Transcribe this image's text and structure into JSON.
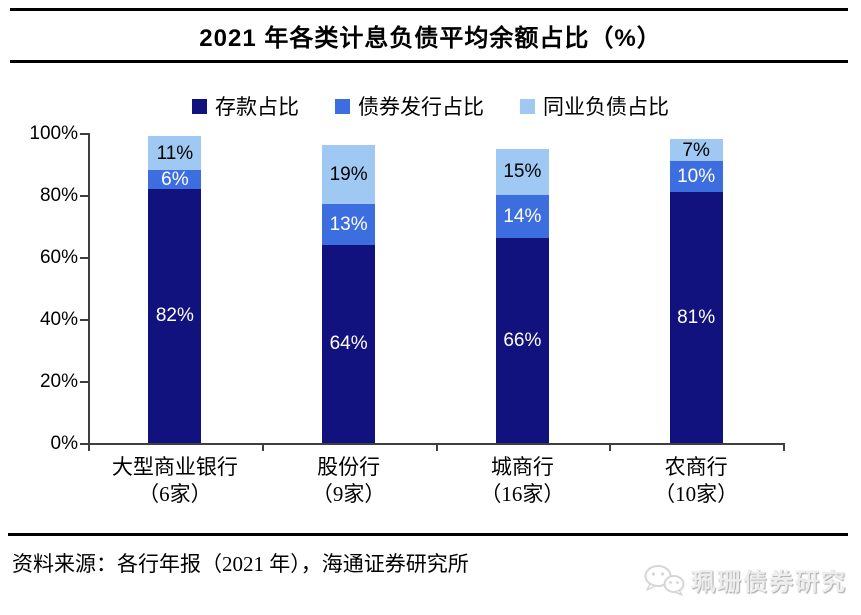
{
  "header": {
    "title": "2021 年各类计息负债平均余额占比（%）"
  },
  "footer": {
    "source": "资料来源：各行年报（2021 年），海通证券研究所",
    "watermark": "珮珊债券研究",
    "watermark_icon": "wechat-icon"
  },
  "chart_data": {
    "type": "bar",
    "stacked": true,
    "title": "2021 年各类计息负债平均余额占比（%）",
    "categories": [
      {
        "name": "大型商业银行",
        "sub": "（6家）"
      },
      {
        "name": "股份行",
        "sub": "（9家）"
      },
      {
        "name": "城商行",
        "sub": "（16家）"
      },
      {
        "name": "农商行",
        "sub": "（10家）"
      }
    ],
    "series": [
      {
        "name": "存款占比",
        "color": "#12127E",
        "label_color": "#ffffff",
        "values": [
          82,
          64,
          66,
          81
        ]
      },
      {
        "name": "债券发行占比",
        "color": "#3D6EE0",
        "label_color": "#ffffff",
        "values": [
          6,
          13,
          14,
          10
        ]
      },
      {
        "name": "同业负债占比",
        "color": "#9FC9F3",
        "label_color": "#000000",
        "values": [
          11,
          19,
          15,
          7
        ]
      }
    ],
    "value_suffix": "%",
    "ylim": [
      0,
      100
    ],
    "yticks": [
      0,
      20,
      40,
      60,
      80,
      100
    ],
    "ytick_suffix": "%",
    "grid": false,
    "legend_position": "top",
    "axis_color": "#3f3f3f"
  }
}
